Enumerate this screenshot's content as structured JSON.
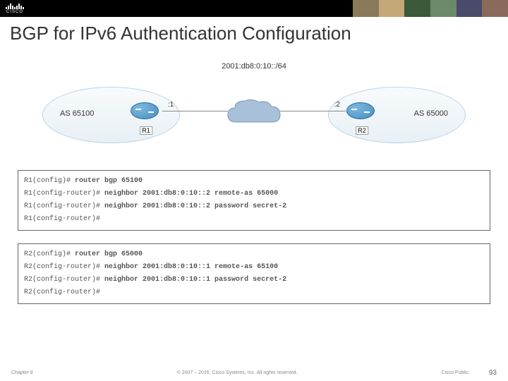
{
  "header": {
    "logo_text": "CISCO",
    "photo_colors": [
      "#8a7a5a",
      "#c4a878",
      "#3a5a3a",
      "#6a8a6a",
      "#4a4a6a",
      "#8a6a5a"
    ]
  },
  "title": "BGP for IPv6 Authentication Configuration",
  "diagram": {
    "subnet": "2001:db8:0:10::/64",
    "as_left": {
      "label": "AS 65100",
      "router": "R1",
      "ip_suffix": ":1"
    },
    "as_right": {
      "label": "AS 65000",
      "router": "R2",
      "ip_suffix": ":2"
    },
    "ellipse_border": "#b8d4e8",
    "ellipse_fill_top": "#f8fbfd",
    "ellipse_fill_bottom": "#e8f0f5",
    "router_color": "#4a8fc0",
    "cloud_fill": "#a8c0d8",
    "cloud_stroke": "#7a98b8"
  },
  "config1": {
    "lines": [
      {
        "prompt": "R1(config)# ",
        "cmd": "router bgp 65100"
      },
      {
        "prompt": "R1(config-router)# ",
        "cmd": "neighbor 2001:db8:0:10::2 remote-as 65000"
      },
      {
        "prompt": "R1(config-router)# ",
        "cmd": "neighbor 2001:db8:0:10::2 password secret-2"
      },
      {
        "prompt": "R1(config-router)#",
        "cmd": ""
      }
    ]
  },
  "config2": {
    "lines": [
      {
        "prompt": "R2(config)# ",
        "cmd": "router bgp 65000"
      },
      {
        "prompt": "R2(config-router)# ",
        "cmd": "neighbor 2001:db8:0:10::1 remote-as 65100"
      },
      {
        "prompt": "R2(config-router)# ",
        "cmd": "neighbor 2001:db8:0:10::1 password secret-2"
      },
      {
        "prompt": "R2(config-router)#",
        "cmd": ""
      }
    ]
  },
  "footer": {
    "chapter": "Chapter 8",
    "copyright": "© 2007 – 2016, Cisco Systems, Inc. All rights reserved.",
    "public": "Cisco Public",
    "page": "93"
  }
}
